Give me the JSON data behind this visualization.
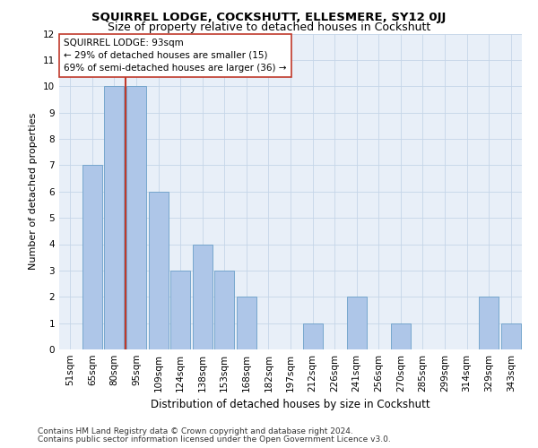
{
  "title": "SQUIRREL LODGE, COCKSHUTT, ELLESMERE, SY12 0JJ",
  "subtitle": "Size of property relative to detached houses in Cockshutt",
  "xlabel": "Distribution of detached houses by size in Cockshutt",
  "ylabel": "Number of detached properties",
  "categories": [
    "51sqm",
    "65sqm",
    "80sqm",
    "95sqm",
    "109sqm",
    "124sqm",
    "138sqm",
    "153sqm",
    "168sqm",
    "182sqm",
    "197sqm",
    "212sqm",
    "226sqm",
    "241sqm",
    "256sqm",
    "270sqm",
    "285sqm",
    "299sqm",
    "314sqm",
    "329sqm",
    "343sqm"
  ],
  "values": [
    0,
    7,
    10,
    10,
    6,
    3,
    4,
    3,
    2,
    0,
    0,
    1,
    0,
    2,
    0,
    1,
    0,
    0,
    0,
    2,
    1
  ],
  "bar_color": "#aec6e8",
  "bar_edge_color": "#6a9fc8",
  "marker_line_color": "#c0392b",
  "annotation_line1": "SQUIRREL LODGE: 93sqm",
  "annotation_line2": "← 29% of detached houses are smaller (15)",
  "annotation_line3": "69% of semi-detached houses are larger (36) →",
  "annotation_box_color": "#ffffff",
  "annotation_box_edge": "#c0392b",
  "ylim": [
    0,
    12
  ],
  "yticks": [
    0,
    1,
    2,
    3,
    4,
    5,
    6,
    7,
    8,
    9,
    10,
    11,
    12
  ],
  "grid_color": "#c5d5e8",
  "bg_color": "#e8eff8",
  "footer1": "Contains HM Land Registry data © Crown copyright and database right 2024.",
  "footer2": "Contains public sector information licensed under the Open Government Licence v3.0.",
  "title_fontsize": 9.5,
  "subtitle_fontsize": 9,
  "xlabel_fontsize": 8.5,
  "ylabel_fontsize": 8,
  "tick_fontsize": 7.5,
  "annot_fontsize": 7.5,
  "footer_fontsize": 6.5
}
